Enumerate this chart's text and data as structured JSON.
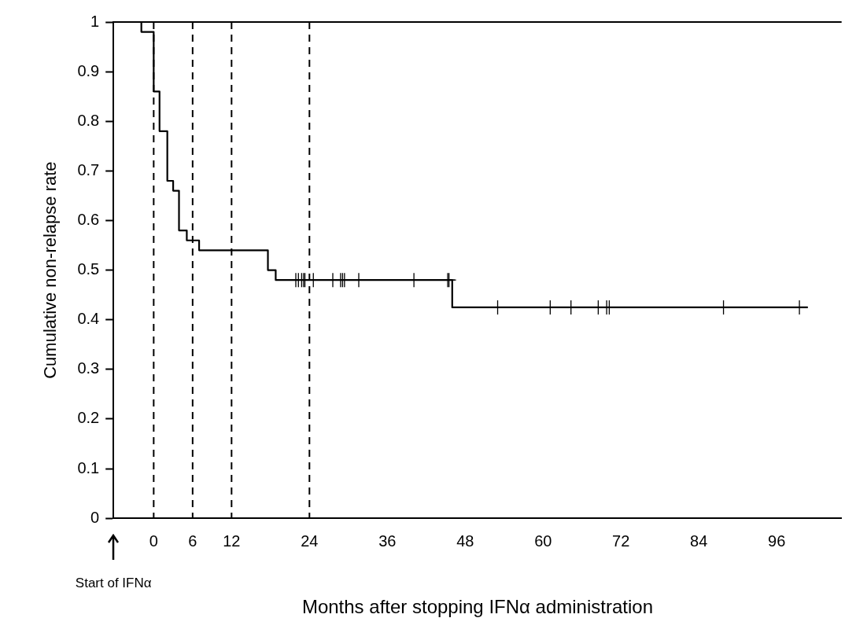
{
  "chart_data": {
    "type": "step",
    "xlabel": "Months after stopping IFNα administration",
    "ylabel": "Cumulative non-relapse rate",
    "annotations": [
      "Start of IFNα"
    ],
    "series": [
      {
        "color": "#000000",
        "marker": "none",
        "x": [
          -6.2,
          -1.9,
          0,
          0.9,
          2.1,
          3,
          3.9,
          5.1,
          7,
          17.6,
          18.8,
          46,
          100.8
        ],
        "values": [
          1,
          0.98,
          0.86,
          0.78,
          0.68,
          0.66,
          0.58,
          0.56,
          0.54,
          0.5,
          0.48,
          0.425,
          0.425
        ]
      },
      {
        "type": "scatter",
        "color": "#000000",
        "marker": "cross",
        "x": [
          21.9,
          22.3,
          22.8,
          23.1,
          23.3,
          24.6,
          27.6,
          28.8,
          29.1,
          29.4,
          31.6,
          40.1,
          45.3,
          45.5,
          53,
          61.1,
          64.3,
          68.5,
          69.8,
          70.2,
          87.8,
          99.5
        ],
        "values": [
          0.48,
          0.48,
          0.48,
          0.48,
          0.48,
          0.48,
          0.48,
          0.48,
          0.48,
          0.48,
          0.48,
          0.48,
          0.48,
          0.48,
          0.425,
          0.425,
          0.425,
          0.425,
          0.425,
          0.425,
          0.425,
          0.425
        ]
      }
    ],
    "ref_lines": [
      {
        "axis": "x",
        "value": 0,
        "line_style": "dashed",
        "color": "#000000"
      },
      {
        "axis": "x",
        "value": 6,
        "line_style": "dashed",
        "color": "#000000"
      },
      {
        "axis": "x",
        "value": 12,
        "line_style": "dashed",
        "color": "#000000"
      },
      {
        "axis": "x",
        "value": 24,
        "line_style": "dashed",
        "color": "#000000"
      }
    ],
    "xlim": [
      -6.2,
      106
    ],
    "xticks": [
      0,
      6,
      12,
      24,
      36,
      48,
      60,
      72,
      84,
      96
    ],
    "ylim": [
      0,
      1
    ],
    "yticks": [
      0,
      0.1,
      0.2,
      0.3,
      0.4,
      0.5,
      0.6,
      0.7,
      0.8,
      0.9,
      1
    ],
    "grid": false,
    "legend": false
  }
}
